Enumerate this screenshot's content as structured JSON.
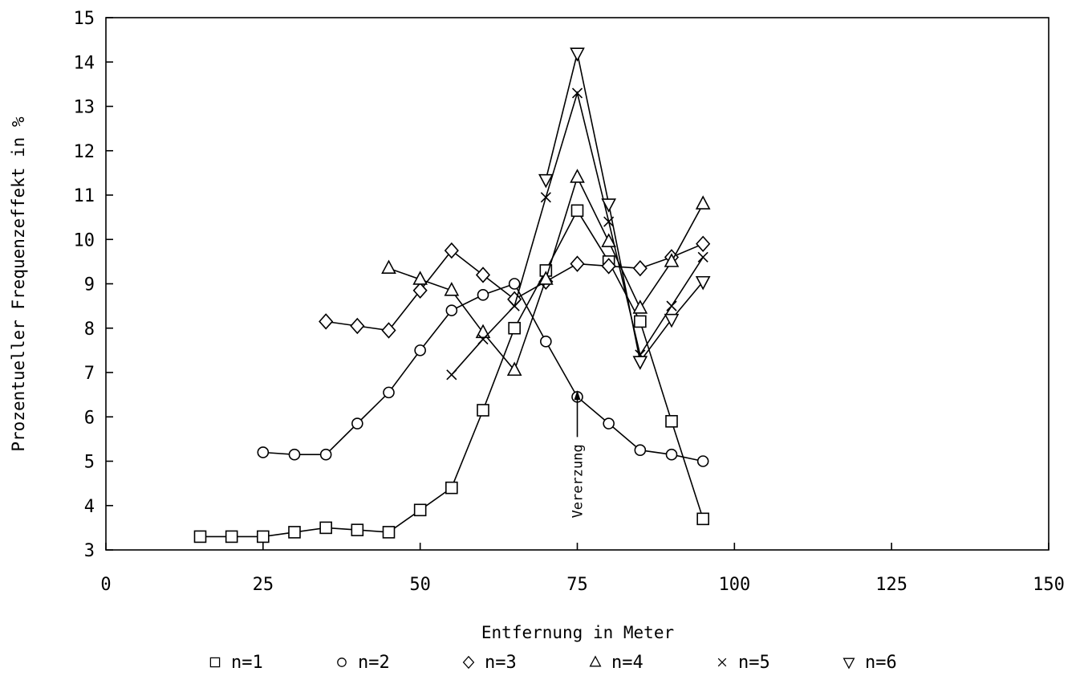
{
  "chart_data": {
    "type": "line",
    "xlabel": "Entfernung in Meter",
    "ylabel": "Prozentueller Frequenzeffekt in %",
    "xlim": [
      0,
      150
    ],
    "ylim": [
      3,
      15
    ],
    "xticks": [
      0,
      25,
      50,
      75,
      100,
      125,
      150
    ],
    "yticks": [
      3,
      4,
      5,
      6,
      7,
      8,
      9,
      10,
      11,
      12,
      13,
      14,
      15
    ],
    "grid": false,
    "legend_position": "bottom",
    "annotation": {
      "text": "Vererzung",
      "x": 75,
      "y": 6.6,
      "arrow": "up"
    },
    "series": [
      {
        "name": "n=1",
        "marker": "square",
        "x": [
          15,
          20,
          25,
          30,
          35,
          40,
          45,
          50,
          55,
          60,
          65,
          70,
          75,
          80,
          85,
          90,
          95
        ],
        "y": [
          3.3,
          3.3,
          3.3,
          3.4,
          3.5,
          3.45,
          3.4,
          3.9,
          4.4,
          6.15,
          8.0,
          9.3,
          10.65,
          9.5,
          8.15,
          5.9,
          3.7
        ]
      },
      {
        "name": "n=2",
        "marker": "circle",
        "x": [
          25,
          30,
          35,
          40,
          45,
          50,
          55,
          60,
          65,
          70,
          75,
          80,
          85,
          90,
          95
        ],
        "y": [
          5.2,
          5.15,
          5.15,
          5.85,
          6.55,
          7.5,
          8.4,
          8.75,
          9.0,
          7.7,
          6.45,
          5.85,
          5.25,
          5.15,
          5.0
        ]
      },
      {
        "name": "n=3",
        "marker": "diamond",
        "x": [
          35,
          40,
          45,
          50,
          55,
          60,
          65,
          70,
          75,
          80,
          85,
          90,
          95
        ],
        "y": [
          8.15,
          8.05,
          7.95,
          8.85,
          9.75,
          9.2,
          8.65,
          9.05,
          9.45,
          9.4,
          9.35,
          9.6,
          9.9
        ]
      },
      {
        "name": "n=4",
        "marker": "triangle-up",
        "x": [
          45,
          50,
          55,
          60,
          65,
          70,
          75,
          80,
          85,
          90,
          95
        ],
        "y": [
          9.35,
          9.1,
          8.85,
          7.9,
          7.05,
          9.1,
          11.4,
          9.95,
          8.45,
          9.5,
          10.8
        ]
      },
      {
        "name": "n=5",
        "marker": "cross",
        "x": [
          55,
          60,
          65,
          70,
          75,
          80,
          85,
          90,
          95
        ],
        "y": [
          6.95,
          7.75,
          8.5,
          10.95,
          13.3,
          10.4,
          7.4,
          8.5,
          9.6
        ]
      },
      {
        "name": "n=6",
        "marker": "triangle-down",
        "x": [
          70,
          75,
          80,
          85,
          90,
          95
        ],
        "y": [
          11.35,
          14.2,
          10.8,
          7.25,
          8.2,
          9.05
        ]
      }
    ]
  }
}
